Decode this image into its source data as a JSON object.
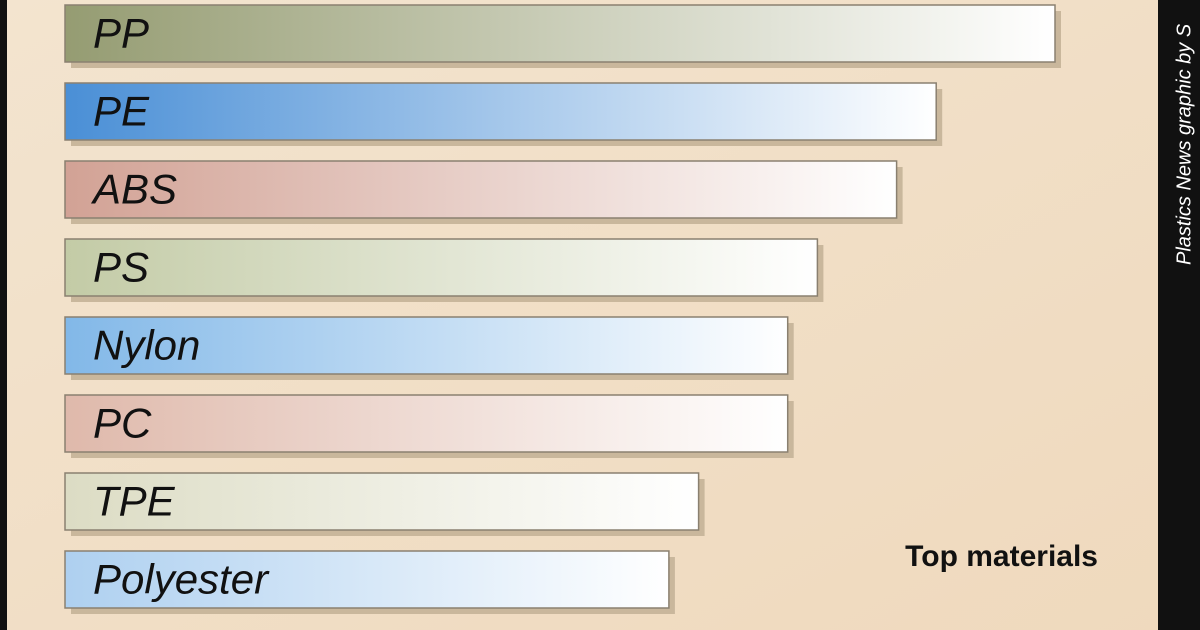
{
  "chart_data": {
    "type": "bar",
    "orientation": "horizontal",
    "title": "Top materials",
    "credit": "Plastics News graphic by S",
    "categories": [
      "PP",
      "PE",
      "ABS",
      "PS",
      "Nylon",
      "PC",
      "TPE",
      "Polyester"
    ],
    "values": [
      100,
      88,
      84,
      76,
      73,
      73,
      64,
      61
    ],
    "colors": [
      "#959c72",
      "#4a8fd6",
      "#d2a295",
      "#c3cba6",
      "#82b8e8",
      "#dfb9ab",
      "#dcdcc4",
      "#aed0f0"
    ]
  }
}
